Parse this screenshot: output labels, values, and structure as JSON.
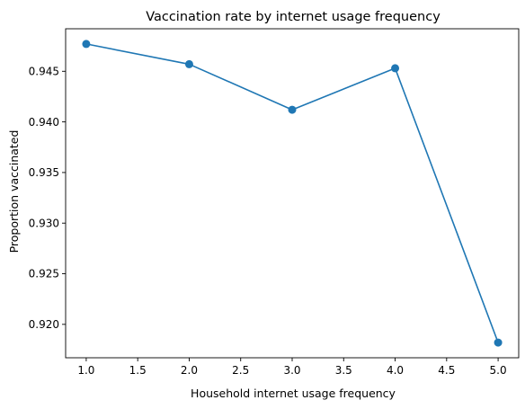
{
  "chart_data": {
    "type": "line",
    "title": "Vaccination rate by internet usage frequency",
    "xlabel": "Household internet usage frequency",
    "ylabel": "Proportion vaccinated",
    "x": [
      1.0,
      2.0,
      3.0,
      4.0,
      5.0
    ],
    "series": [
      {
        "values": [
          0.9477,
          0.9457,
          0.9412,
          0.9453,
          0.9182
        ]
      }
    ],
    "xlim": [
      0.8,
      5.2
    ],
    "ylim": [
      0.9167,
      0.9492
    ],
    "xticks": [
      1.0,
      1.5,
      2.0,
      2.5,
      3.0,
      3.5,
      4.0,
      4.5,
      5.0
    ],
    "xtick_labels": [
      "1.0",
      "1.5",
      "2.0",
      "2.5",
      "3.0",
      "3.5",
      "4.0",
      "4.5",
      "5.0"
    ],
    "yticks": [
      0.92,
      0.925,
      0.93,
      0.935,
      0.94,
      0.945
    ],
    "ytick_labels": [
      "0.920",
      "0.925",
      "0.930",
      "0.935",
      "0.940",
      "0.945"
    ],
    "grid": false,
    "line_color": "#1f77b4",
    "marker": "circle"
  }
}
